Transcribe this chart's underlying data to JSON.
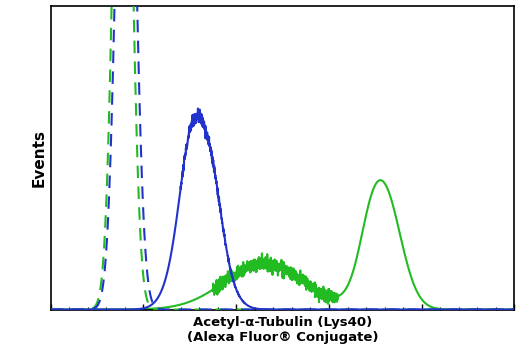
{
  "title_line1": "Acetyl-α-Tubulin (Lys40)",
  "title_line2": "(Alexa Fluor® Conjugate)",
  "ylabel": "Events",
  "background_color": "#ffffff",
  "plot_bg_color": "#ffffff",
  "green_color": "#22bb22",
  "blue_color": "#2233cc",
  "x_range": [
    0,
    1000
  ],
  "y_range": [
    0,
    1.05
  ],
  "figsize": [
    5.2,
    3.5
  ],
  "dpi": 100
}
